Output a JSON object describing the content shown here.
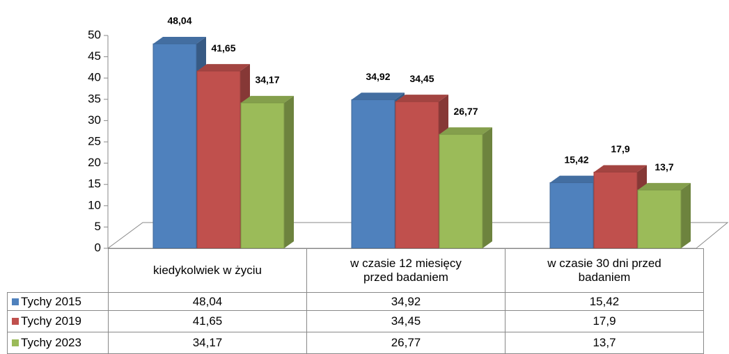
{
  "chart_data": {
    "type": "bar",
    "categories": [
      "kiedykolwiek w życiu",
      "w czasie 12 miesięcy przed badaniem",
      "w czasie 30 dni przed badaniem"
    ],
    "series": [
      {
        "name": "Tychy 2015",
        "color": "#4f81bd",
        "values": [
          48.04,
          34.92,
          15.42
        ],
        "value_labels": [
          "48,04",
          "34,92",
          "15,42"
        ]
      },
      {
        "name": "Tychy 2019",
        "color": "#c0504d",
        "values": [
          41.65,
          34.45,
          17.9
        ],
        "value_labels": [
          "41,65",
          "34,45",
          "17,9"
        ]
      },
      {
        "name": "Tychy 2023",
        "color": "#9bbb59",
        "values": [
          34.17,
          26.77,
          13.7
        ],
        "value_labels": [
          "34,17",
          "26,77",
          "13,7"
        ]
      }
    ],
    "ylim": [
      0,
      50
    ],
    "yticks": [
      0,
      5,
      10,
      15,
      20,
      25,
      30,
      35,
      40,
      45,
      50
    ]
  }
}
